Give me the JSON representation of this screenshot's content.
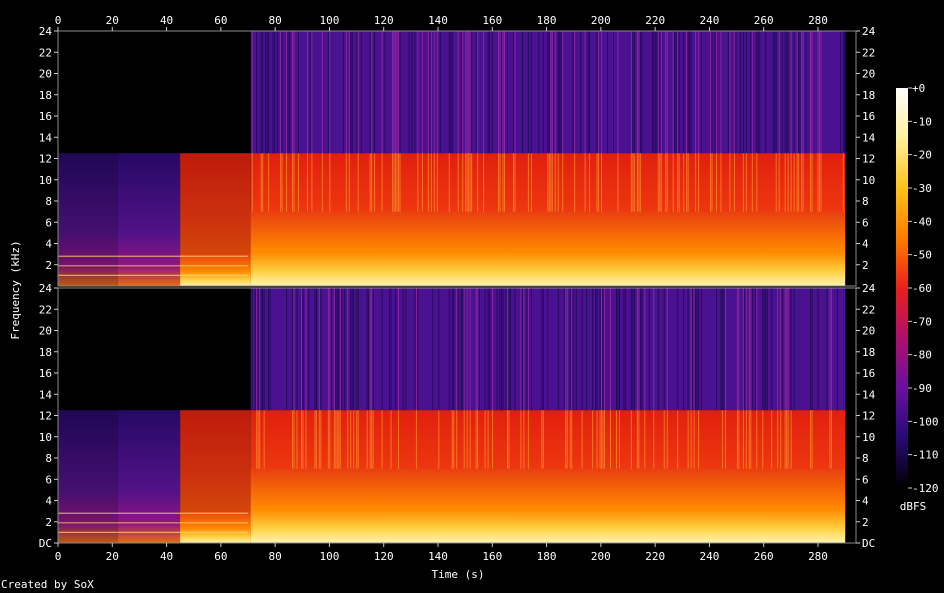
{
  "chart_data": {
    "type": "heatmap",
    "xlabel": "Time (s)",
    "ylabel": "Frequency (kHz)",
    "xlim": [
      0,
      294
    ],
    "ylim_khz": [
      0,
      24
    ],
    "x_ticks": [
      "0",
      "20",
      "40",
      "60",
      "80",
      "100",
      "120",
      "140",
      "160",
      "180",
      "200",
      "220",
      "240",
      "260",
      "280"
    ],
    "y_ticks_top": [
      "24",
      "22",
      "20",
      "18",
      "16",
      "14",
      "12",
      "10",
      "8",
      "6",
      "4",
      "2"
    ],
    "y_ticks_bottom": [
      "24",
      "22",
      "20",
      "18",
      "16",
      "14",
      "12",
      "10",
      "8",
      "6",
      "4",
      "2",
      "DC"
    ],
    "channels": 2,
    "colorbar": {
      "label": "dBFS",
      "range": [
        -120,
        0
      ],
      "ticks": [
        "+0",
        "-10",
        "-20",
        "-30",
        "-40",
        "-50",
        "-60",
        "-70",
        "-80",
        "-90",
        "-100",
        "-110",
        "-120"
      ]
    },
    "segments": [
      {
        "start": 0,
        "end": 22,
        "cutoff_khz": 12.5,
        "level": "quiet"
      },
      {
        "start": 22,
        "end": 45,
        "cutoff_khz": 12.5,
        "level": "building"
      },
      {
        "start": 45,
        "end": 71,
        "cutoff_khz": 12.5,
        "level": "rising"
      },
      {
        "start": 71,
        "end": 290,
        "cutoff_khz": 12.5,
        "level": "loud"
      }
    ]
  },
  "credit": "Created by SoX"
}
